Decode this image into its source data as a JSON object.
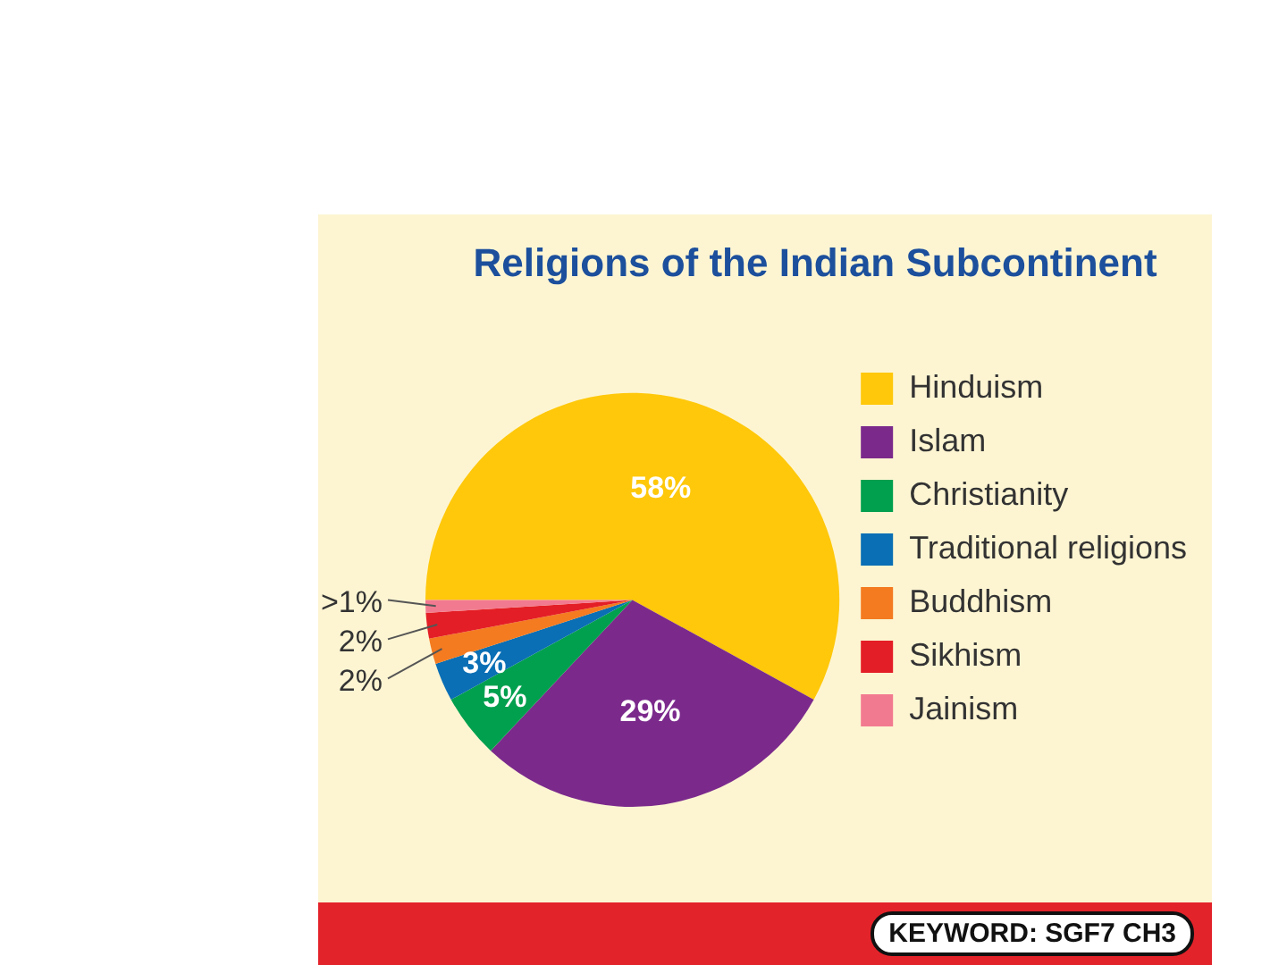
{
  "chart_data": {
    "type": "pie",
    "title": "Religions of the Indian Subcontinent",
    "categories": [
      "Hinduism",
      "Islam",
      "Christianity",
      "Traditional religions",
      "Buddhism",
      "Sikhism",
      "Jainism"
    ],
    "values": [
      58,
      29,
      5,
      3,
      2,
      2,
      1
    ],
    "colors": [
      "#ffc80a",
      "#7b2a8c",
      "#00a04f",
      "#0a6fb5",
      "#f47b20",
      "#e41e26",
      "#f27a90"
    ],
    "value_labels": [
      "58%",
      "29%",
      "5%",
      "3%",
      "2%",
      "2%",
      ">1%"
    ],
    "legend": "right",
    "annotations": [
      "KEYWORD: SGF7 CH3"
    ]
  }
}
